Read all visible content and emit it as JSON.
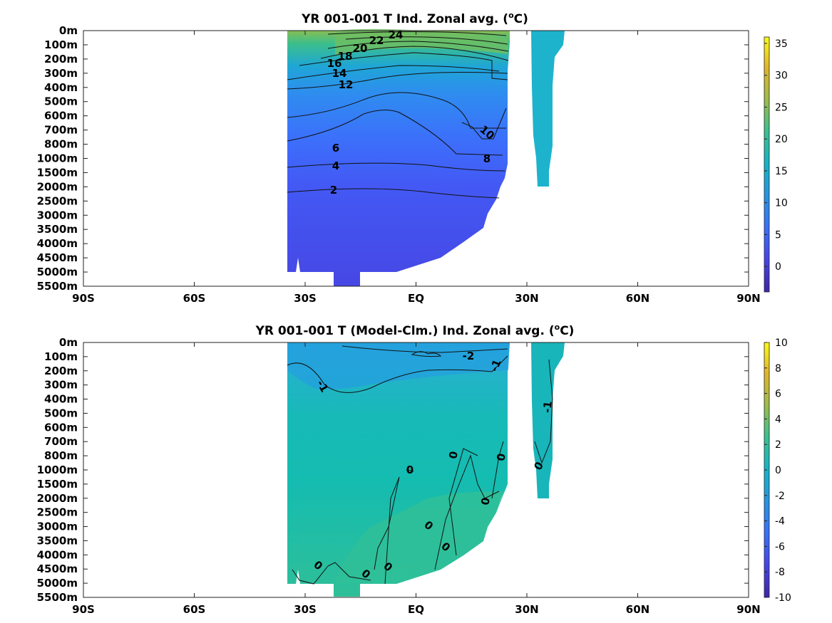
{
  "chart_data": [
    {
      "type": "heatmap",
      "title": "YR 001-001 T Ind. Zonal avg. (",
      "title_sup": "o",
      "title_end": "C)",
      "xlabel": "",
      "ylabel": "",
      "x_ticks": [
        "90S",
        "60S",
        "30S",
        "EQ",
        "30N",
        "60N",
        "90N"
      ],
      "y_ticks": [
        "0m",
        "100m",
        "200m",
        "300m",
        "400m",
        "500m",
        "600m",
        "700m",
        "800m",
        "1000m",
        "1500m",
        "2000m",
        "2500m",
        "3000m",
        "3500m",
        "4000m",
        "4500m",
        "5000m",
        "5500m"
      ],
      "colorbar": {
        "min": -4,
        "max": 36,
        "ticks": [
          "35",
          "30",
          "25",
          "20",
          "15",
          "10",
          "5",
          "0"
        ]
      },
      "contours": [
        {
          "level": "24"
        },
        {
          "level": "22"
        },
        {
          "level": "20"
        },
        {
          "level": "18"
        },
        {
          "level": "16"
        },
        {
          "level": "14"
        },
        {
          "level": "12"
        },
        {
          "level": "10"
        },
        {
          "level": "8"
        },
        {
          "level": "6"
        },
        {
          "level": "4"
        },
        {
          "level": "2"
        }
      ],
      "columns": [
        {
          "x0": 400,
          "x1": 715,
          "bottom": 17,
          "surface": 26,
          "depth_value": 1.5
        },
        {
          "x0": 745,
          "x1": 775,
          "bottom": 10,
          "surface": 17,
          "depth_value": 12
        }
      ]
    },
    {
      "type": "heatmap",
      "title": "YR 001-001 T (Model-Clm.) Ind. Zonal avg. (",
      "title_sup": "o",
      "title_end": "C)",
      "xlabel": "",
      "ylabel": "",
      "x_ticks": [
        "90S",
        "60S",
        "30S",
        "EQ",
        "30N",
        "60N",
        "90N"
      ],
      "y_ticks": [
        "0m",
        "100m",
        "200m",
        "300m",
        "400m",
        "500m",
        "600m",
        "700m",
        "800m",
        "1000m",
        "1500m",
        "2000m",
        "2500m",
        "3000m",
        "3500m",
        "4000m",
        "4500m",
        "5000m",
        "5500m"
      ],
      "colorbar": {
        "min": -10,
        "max": 10,
        "ticks": [
          "10",
          "8",
          "6",
          "4",
          "2",
          "0",
          "-2",
          "-4",
          "-6",
          "-8",
          "-10"
        ]
      },
      "contours": [
        {
          "level": "-2"
        },
        {
          "level": "-1"
        },
        {
          "level": "-1"
        },
        {
          "level": "-1"
        },
        {
          "level": "0"
        },
        {
          "level": "0"
        },
        {
          "level": "0"
        },
        {
          "level": "0"
        },
        {
          "level": "0"
        },
        {
          "level": "0"
        },
        {
          "level": "0"
        },
        {
          "level": "0"
        },
        {
          "level": "0"
        },
        {
          "level": "0"
        }
      ]
    }
  ]
}
